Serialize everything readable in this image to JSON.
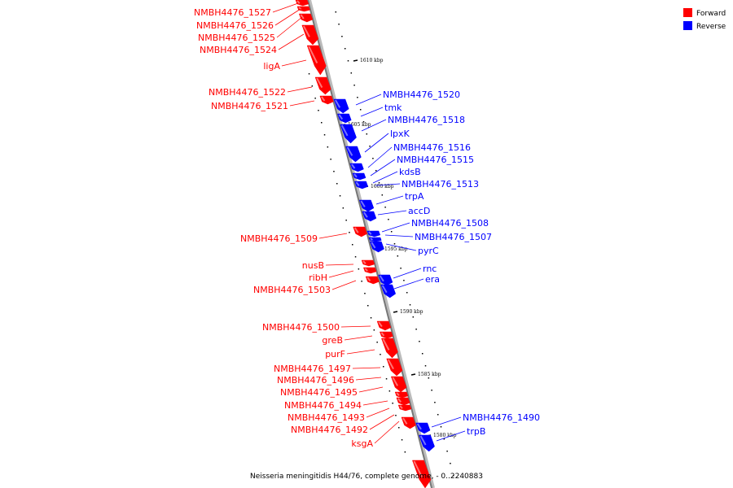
{
  "colors": {
    "forward": "#ff0000",
    "reverse": "#0000ff"
  },
  "legend": [
    {
      "label": "Forward",
      "color": "#ff0000"
    },
    {
      "label": "Reverse",
      "color": "#0000ff"
    }
  ],
  "caption": "Neisseria meningitidis H44/76, complete genome, - 0..2240883",
  "ticks": [
    "1610 kbp",
    "1605 kbp",
    "1600 kbp",
    "1595 kbp",
    "1590 kbp",
    "1585 kbp",
    "1580 kbp"
  ],
  "forward_genes": [
    "NMBH4476_1527",
    "NMBH4476_1526",
    "NMBH4476_1525",
    "NMBH4476_1524",
    "ligA",
    "NMBH4476_1522",
    "NMBH4476_1521",
    "NMBH4476_1509",
    "nusB",
    "ribH",
    "NMBH4476_1503",
    "NMBH4476_1500",
    "greB",
    "purF",
    "NMBH4476_1497",
    "NMBH4476_1496",
    "NMBH4476_1495",
    "NMBH4476_1494",
    "NMBH4476_1493",
    "NMBH4476_1492",
    "ksgA"
  ],
  "reverse_genes": [
    "NMBH4476_1520",
    "tmk",
    "NMBH4476_1518",
    "lpxK",
    "NMBH4476_1516",
    "NMBH4476_1515",
    "kdsB",
    "NMBH4476_1513",
    "trpA",
    "accD",
    "NMBH4476_1508",
    "NMBH4476_1507",
    "pyrC",
    "rnc",
    "era",
    "NMBH4476_1490",
    "trpB"
  ]
}
